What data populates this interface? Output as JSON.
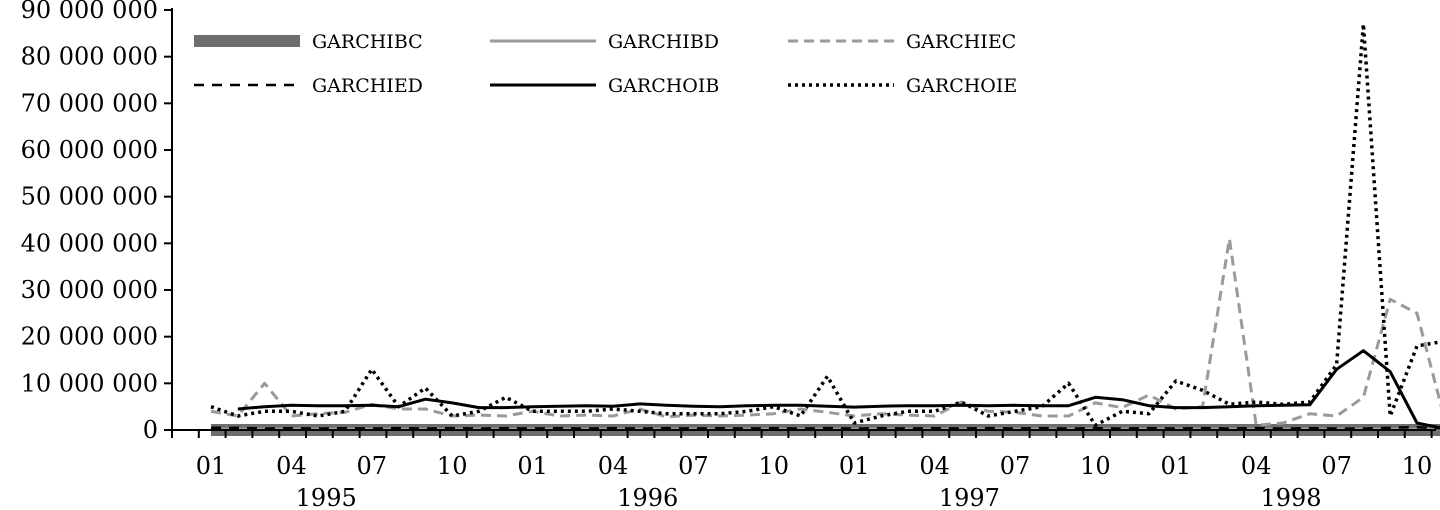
{
  "chart_data": {
    "type": "line",
    "title": "",
    "xlabel": "",
    "ylabel": "",
    "ylim": [
      0,
      90000000
    ],
    "y_ticks": [
      {
        "value": 0,
        "label": "0"
      },
      {
        "value": 10000000,
        "label": "10 000 000"
      },
      {
        "value": 20000000,
        "label": "20 000 000"
      },
      {
        "value": 30000000,
        "label": "30 000 000"
      },
      {
        "value": 40000000,
        "label": "40 000 000"
      },
      {
        "value": 50000000,
        "label": "50 000 000"
      },
      {
        "value": 60000000,
        "label": "60 000 000"
      },
      {
        "value": 70000000,
        "label": "70 000 000"
      },
      {
        "value": 80000000,
        "label": "80 000 000"
      },
      {
        "value": 90000000,
        "label": "90 000 000"
      }
    ],
    "x": [
      "1995-01",
      "1995-02",
      "1995-03",
      "1995-04",
      "1995-05",
      "1995-06",
      "1995-07",
      "1995-08",
      "1995-09",
      "1995-10",
      "1995-11",
      "1995-12",
      "1996-01",
      "1996-02",
      "1996-03",
      "1996-04",
      "1996-05",
      "1996-06",
      "1996-07",
      "1996-08",
      "1996-09",
      "1996-10",
      "1996-11",
      "1996-12",
      "1997-01",
      "1997-02",
      "1997-03",
      "1997-04",
      "1997-05",
      "1997-06",
      "1997-07",
      "1997-08",
      "1997-09",
      "1997-10",
      "1997-11",
      "1997-12",
      "1998-01",
      "1998-02",
      "1998-03",
      "1998-04",
      "1998-05",
      "1998-06",
      "1998-07",
      "1998-08",
      "1998-09",
      "1998-10",
      "1998-11"
    ],
    "x_tick_labels": [
      {
        "x": "1995-01",
        "label": "01"
      },
      {
        "x": "1995-04",
        "label": "04"
      },
      {
        "x": "1995-07",
        "label": "07"
      },
      {
        "x": "1995-10",
        "label": "10"
      },
      {
        "x": "1996-01",
        "label": "01"
      },
      {
        "x": "1996-04",
        "label": "04"
      },
      {
        "x": "1996-07",
        "label": "07"
      },
      {
        "x": "1996-10",
        "label": "10"
      },
      {
        "x": "1997-01",
        "label": "01"
      },
      {
        "x": "1997-04",
        "label": "04"
      },
      {
        "x": "1997-07",
        "label": "07"
      },
      {
        "x": "1997-10",
        "label": "10"
      },
      {
        "x": "1998-01",
        "label": "01"
      },
      {
        "x": "1998-04",
        "label": "04"
      },
      {
        "x": "1998-07",
        "label": "07"
      },
      {
        "x": "1998-10",
        "label": "10"
      }
    ],
    "x_year_labels": [
      {
        "x": "1995-05",
        "label": "1995"
      },
      {
        "x": "1996-05",
        "label": "1996"
      },
      {
        "x": "1997-05",
        "label": "1997"
      },
      {
        "x": "1998-05",
        "label": "1998"
      }
    ],
    "legend_position": "top-left",
    "grid": false,
    "series": [
      {
        "name": "GARCHIBC",
        "color": "#6e6e6e",
        "style": "thick",
        "values": [
          0,
          0,
          0,
          0,
          0,
          0,
          0,
          0,
          0,
          0,
          0,
          0,
          0,
          0,
          0,
          0,
          0,
          0,
          0,
          0,
          0,
          0,
          0,
          0,
          0,
          0,
          0,
          0,
          0,
          0,
          0,
          0,
          0,
          0,
          0,
          0,
          0,
          0,
          0,
          0,
          0,
          0,
          0,
          0,
          0,
          0,
          0
        ]
      },
      {
        "name": "GARCHIBD",
        "color": "#9a9a9a",
        "style": "solid-light",
        "values": [
          200000,
          200000,
          200000,
          200000,
          200000,
          200000,
          200000,
          200000,
          200000,
          200000,
          200000,
          200000,
          200000,
          200000,
          200000,
          200000,
          200000,
          200000,
          200000,
          200000,
          200000,
          200000,
          200000,
          200000,
          200000,
          200000,
          200000,
          200000,
          200000,
          200000,
          200000,
          200000,
          200000,
          200000,
          200000,
          200000,
          200000,
          200000,
          200000,
          200000,
          200000,
          200000,
          200000,
          200000,
          200000,
          200000,
          200000
        ]
      },
      {
        "name": "GARCHIEC",
        "color": "#9a9a9a",
        "style": "dashed-light",
        "values": [
          4000000,
          3000000,
          10000000,
          3000000,
          3500000,
          3800000,
          5500000,
          4500000,
          4500000,
          3000000,
          3200000,
          3000000,
          4000000,
          3000000,
          3200000,
          3000000,
          4500000,
          2800000,
          3200000,
          3000000,
          3200000,
          3500000,
          4500000,
          3800000,
          3000000,
          3500000,
          3200000,
          3000000,
          6000000,
          4000000,
          3800000,
          3000000,
          3000000,
          5800000,
          4800000,
          7500000,
          4500000,
          5000000,
          41000000,
          1000000,
          1500000,
          3500000,
          3000000,
          7000000,
          28000000,
          25000000,
          3000000
        ]
      },
      {
        "name": "GARCHIED",
        "color": "#000000",
        "style": "dashed-dark",
        "values": [
          500000,
          500000,
          300000,
          400000,
          300000,
          400000,
          300000,
          400000,
          300000,
          400000,
          300000,
          400000,
          300000,
          400000,
          300000,
          400000,
          300000,
          400000,
          300000,
          400000,
          300000,
          400000,
          300000,
          400000,
          300000,
          400000,
          300000,
          400000,
          300000,
          400000,
          300000,
          400000,
          300000,
          400000,
          300000,
          400000,
          300000,
          400000,
          300000,
          400000,
          300000,
          400000,
          300000,
          300000,
          500000,
          600000,
          300000
        ]
      },
      {
        "name": "GARCHOIB",
        "color": "#000000",
        "style": "solid-dark",
        "values": [
          null,
          4500000,
          5000000,
          5300000,
          5200000,
          5200000,
          5300000,
          5000000,
          6600000,
          5800000,
          4800000,
          4800000,
          5000000,
          5100000,
          5200000,
          5100000,
          5600000,
          5300000,
          5100000,
          5000000,
          5200000,
          5300000,
          5300000,
          5100000,
          4900000,
          5100000,
          5200000,
          5200000,
          5300000,
          5200000,
          5300000,
          5200000,
          5200000,
          7000000,
          6500000,
          5200000,
          4800000,
          4800000,
          5000000,
          5200000,
          5300000,
          5400000,
          13000000,
          17000000,
          12500000,
          1500000,
          300000
        ]
      },
      {
        "name": "GARCHOIE",
        "color": "#000000",
        "style": "dotted-dark",
        "values": [
          5000000,
          3000000,
          4000000,
          4000000,
          3000000,
          4000000,
          13000000,
          5000000,
          9000000,
          3000000,
          4000000,
          7000000,
          4000000,
          4000000,
          4000000,
          4500000,
          4000000,
          3500000,
          3500000,
          3500000,
          4000000,
          5000000,
          3000000,
          11500000,
          1500000,
          3000000,
          4000000,
          4000000,
          6000000,
          3000000,
          4000000,
          5000000,
          10000000,
          1000000,
          4000000,
          3500000,
          10500000,
          8500000,
          5500000,
          6000000,
          5500000,
          6000000,
          14000000,
          87000000,
          3000000,
          18000000,
          19000000
        ]
      }
    ]
  }
}
